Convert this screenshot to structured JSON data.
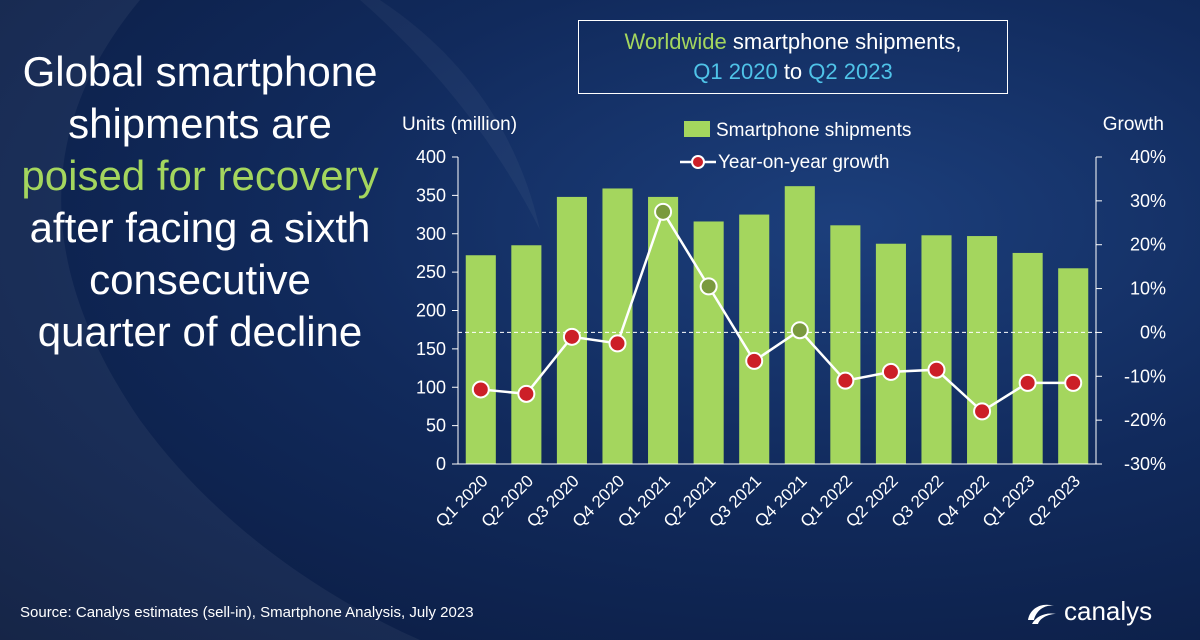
{
  "headline": {
    "part1": "Global smartphone shipments are",
    "highlight": "poised for recovery",
    "part2": "after facing a sixth consecutive quarter of decline"
  },
  "title_box": {
    "line1_accent": "Worldwide",
    "line1_rest": " smartphone shipments,",
    "line2_a": "Q1 2020",
    "line2_b": " to ",
    "line2_c": "Q2 2023"
  },
  "source": "Source:  Canalys estimates (sell-in), Smartphone Analysis, July 2023",
  "logo": {
    "text": "canalys",
    "icon": "canalys-logo-icon"
  },
  "colors": {
    "bar": "#a4d65e",
    "line": "#ffffff",
    "marker_fill": "#cc1f27",
    "marker_fill_positive": "#7a9a3e",
    "accent_cyan": "#4fc3e8",
    "background": "#112a5c"
  },
  "chart_data": {
    "type": "bar",
    "categories": [
      "Q1 2020",
      "Q2 2020",
      "Q3 2020",
      "Q4 2020",
      "Q1 2021",
      "Q2 2021",
      "Q3 2021",
      "Q4 2021",
      "Q1 2022",
      "Q2 2022",
      "Q3 2022",
      "Q4 2022",
      "Q1 2023",
      "Q2 2023"
    ],
    "series": [
      {
        "name": "Smartphone shipments",
        "type": "bar",
        "axis": "left",
        "values": [
          272,
          285,
          348,
          359,
          348,
          316,
          325,
          362,
          311,
          287,
          298,
          297,
          275,
          255
        ]
      },
      {
        "name": "Year-on-year growth",
        "type": "line",
        "axis": "right",
        "values": [
          -13,
          -14,
          -1,
          -2.5,
          27.5,
          10.5,
          -6.5,
          0.5,
          -11,
          -9,
          -8.5,
          -18,
          -11.5,
          -11.5
        ]
      }
    ],
    "ylabel": "Units (million)",
    "y2label": "Growth",
    "ylim": [
      0,
      400
    ],
    "y2lim": [
      -30,
      40
    ],
    "yticks": [
      "0",
      "50",
      "100",
      "150",
      "200",
      "250",
      "300",
      "350",
      "400"
    ],
    "y2ticks": [
      "-30%",
      "-20%",
      "-10%",
      "0%",
      "10%",
      "20%",
      "30%",
      "40%"
    ],
    "legend_position": "top-center",
    "grid": true
  }
}
